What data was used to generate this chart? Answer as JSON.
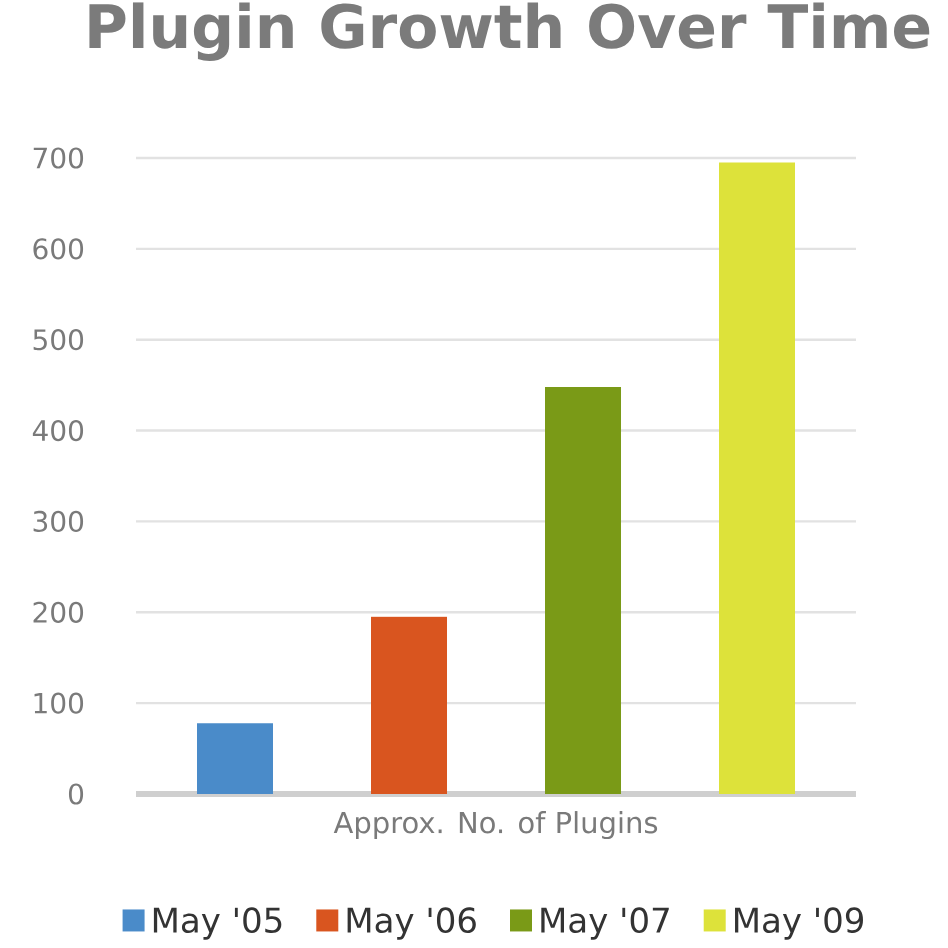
{
  "chart_data": {
    "type": "bar",
    "title": "Plugin Growth Over Time",
    "xlabel": "Approx. No. of Plugins",
    "categories": [
      null
    ],
    "series": [
      {
        "name": "May '05",
        "color": "#4a8bc9",
        "values": [
          78
        ]
      },
      {
        "name": "May '06",
        "color": "#d9551f",
        "values": [
          195
        ]
      },
      {
        "name": "May '07",
        "color": "#7a9a17",
        "values": [
          448
        ]
      },
      {
        "name": "May '09",
        "color": "#dde23a",
        "values": [
          695
        ]
      }
    ],
    "ylim": [
      0,
      700
    ],
    "yticks": [
      0,
      100,
      200,
      300,
      400,
      500,
      600,
      700
    ],
    "grid": "y",
    "legend": "bottom"
  }
}
